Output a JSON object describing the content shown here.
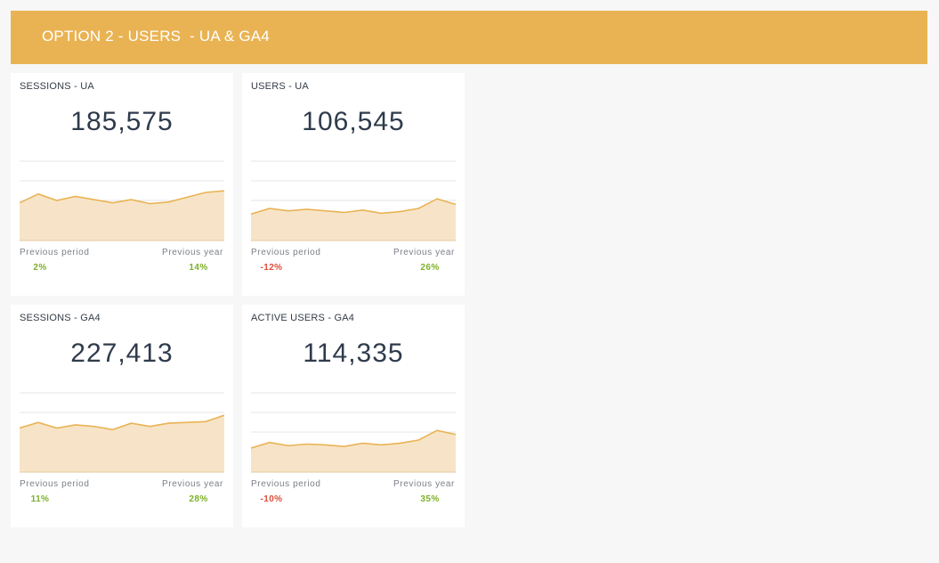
{
  "banner": {
    "title": "OPTION 2 - USERS  - UA & GA4"
  },
  "labels": {
    "previous_period": "Previous period",
    "previous_year": "Previous year"
  },
  "colors": {
    "banner": "#e9b354",
    "line": "#e9b354",
    "fill": "#f7e4c8",
    "positive": "#7cb028",
    "negative": "#dc4e3a"
  },
  "cards": [
    {
      "title": "SESSIONS - UA",
      "value": "185,575",
      "previous_period": "2%",
      "previous_year": "14%",
      "trend": [
        0.47,
        0.58,
        0.5,
        0.55,
        0.51,
        0.47,
        0.51,
        0.46,
        0.48,
        0.54,
        0.6,
        0.62
      ]
    },
    {
      "title": "USERS - UA",
      "value": "106,545",
      "previous_period": "-12%",
      "previous_year": "26%",
      "trend": [
        0.33,
        0.4,
        0.37,
        0.39,
        0.37,
        0.35,
        0.38,
        0.34,
        0.36,
        0.4,
        0.52,
        0.45
      ]
    },
    {
      "title": "SESSIONS - GA4",
      "value": "227,413",
      "previous_period": "11%",
      "previous_year": "28%",
      "trend": [
        0.55,
        0.62,
        0.55,
        0.59,
        0.57,
        0.53,
        0.61,
        0.57,
        0.61,
        0.62,
        0.63,
        0.71
      ]
    },
    {
      "title": "ACTIVE USERS - GA4",
      "value": "114,335",
      "previous_period": "-10%",
      "previous_year": "35%",
      "trend": [
        0.3,
        0.37,
        0.33,
        0.35,
        0.34,
        0.32,
        0.36,
        0.34,
        0.36,
        0.4,
        0.52,
        0.47
      ]
    }
  ]
}
